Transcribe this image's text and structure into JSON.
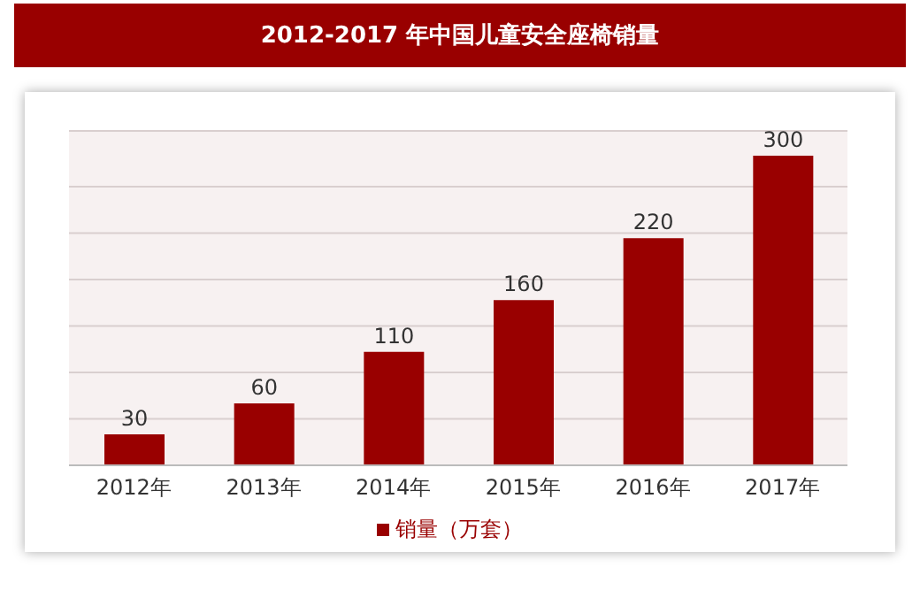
{
  "chart_data": {
    "type": "bar",
    "title": "2012-2017 年中国儿童安全座椅销量",
    "categories": [
      "2012年",
      "2013年",
      "2014年",
      "2015年",
      "2016年",
      "2017年"
    ],
    "series": [
      {
        "name": "销量（万套）",
        "color": "#990000",
        "values": [
          30,
          60,
          110,
          160,
          220,
          300
        ]
      }
    ],
    "data_labels": true,
    "grid": "y",
    "legend": "bottom"
  }
}
